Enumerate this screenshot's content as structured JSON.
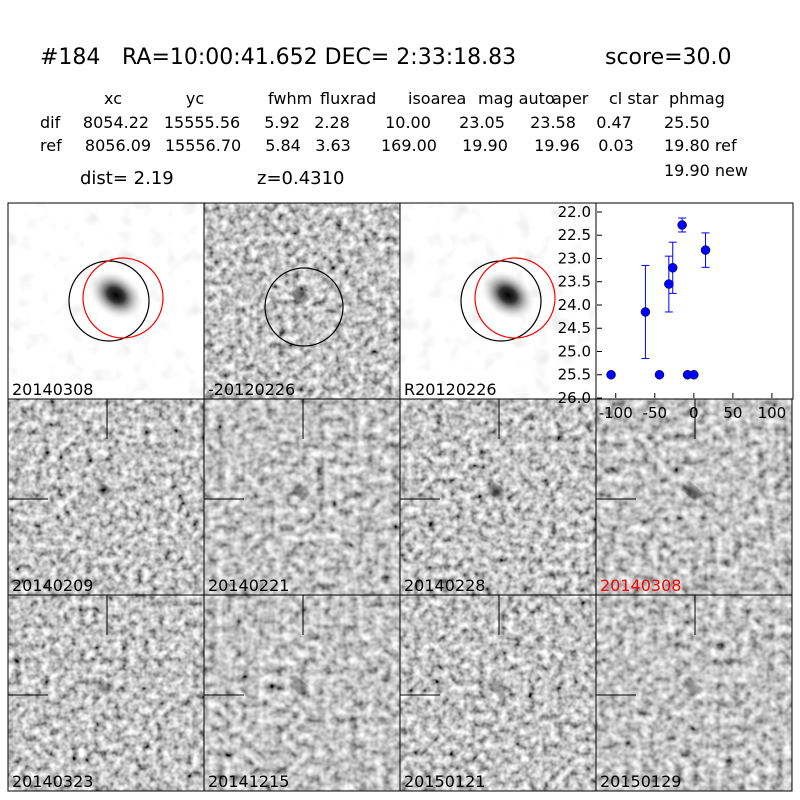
{
  "header": {
    "id": "#184",
    "coords": "RA=10:00:41.652 DEC= 2:33:18.83",
    "score": "score=30.0"
  },
  "table": {
    "columns": [
      "xc",
      "yc",
      "fwhm",
      "fluxrad",
      "isoarea",
      "mag auto",
      "aper",
      "cl star",
      "phmag"
    ],
    "rows": [
      [
        "dif",
        "8054.22",
        "15555.56",
        "5.92",
        "2.28",
        "10.00",
        "23.05",
        "23.58",
        "0.47",
        "25.50"
      ],
      [
        "ref",
        "8056.09",
        "15556.70",
        "5.84",
        "3.63",
        "169.00",
        "19.90",
        "19.96",
        "0.03",
        "19.80 ref"
      ]
    ],
    "extra": "19.90 new",
    "dist": "dist=  2.19",
    "z": "z=0.4310"
  },
  "stamps": [
    "20140308",
    "-20120226",
    "R20120226",
    "20140209",
    "20140221",
    "20140228",
    "20140308",
    "20140323",
    "20141215",
    "20150121",
    "20150129"
  ],
  "chart_data": {
    "type": "scatter",
    "x": [
      -106,
      -62,
      -44,
      -32,
      -27,
      -15,
      -8,
      0,
      15
    ],
    "values": [
      25.5,
      24.15,
      25.5,
      23.55,
      23.2,
      22.28,
      25.5,
      25.5,
      22.82
    ],
    "errors": [
      null,
      1.0,
      null,
      0.6,
      0.55,
      0.15,
      null,
      null,
      0.37
    ],
    "color": "#0000ff",
    "xlim": [
      -124,
      127
    ],
    "ylim": [
      26.0,
      21.85
    ],
    "xticks": [
      -100,
      -50,
      0,
      50,
      100
    ],
    "yticks": [
      {
        "value": 22,
        "label": "22.0"
      },
      22.5,
      {
        "value": 23,
        "label": "23.0"
      },
      23.5,
      {
        "value": 24,
        "label": "24.0"
      },
      24.5,
      {
        "value": 25,
        "label": "25.0"
      },
      25.5,
      {
        "value": 26,
        "label": "26.0"
      }
    ]
  }
}
